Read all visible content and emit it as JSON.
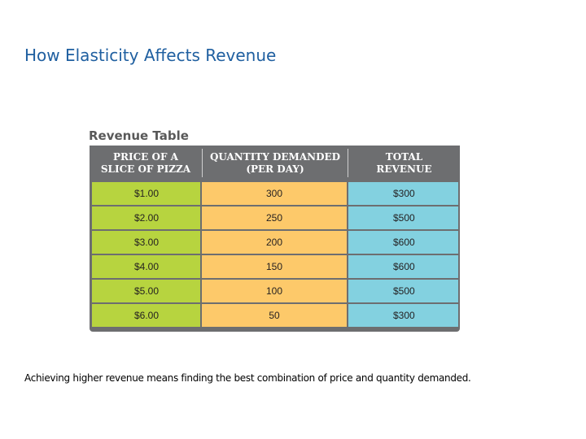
{
  "title": "How Elasticity Affects Revenue",
  "table_caption": "Revenue Table",
  "headers": [
    "PRICE OF A\nSLICE OF PIZZA",
    "QUANTITY DEMANDED\n(PER DAY)",
    "TOTAL\nREVENUE"
  ],
  "rows": [
    {
      "price": "$1.00",
      "quantity": "300",
      "revenue": "$300"
    },
    {
      "price": "$2.00",
      "quantity": "250",
      "revenue": "$500"
    },
    {
      "price": "$3.00",
      "quantity": "200",
      "revenue": "$600"
    },
    {
      "price": "$4.00",
      "quantity": "150",
      "revenue": "$600"
    },
    {
      "price": "$5.00",
      "quantity": "100",
      "revenue": "$500"
    },
    {
      "price": "$6.00",
      "quantity": "50",
      "revenue": "$300"
    }
  ],
  "caption": "Achieving higher revenue means finding the best combination of price and quantity demanded.",
  "colors": {
    "title": "#1f5fa0",
    "header_bg": "#6d6e70",
    "price_col": "#b7d43f",
    "quantity_col": "#fdc96a",
    "revenue_col": "#83d1e0"
  }
}
